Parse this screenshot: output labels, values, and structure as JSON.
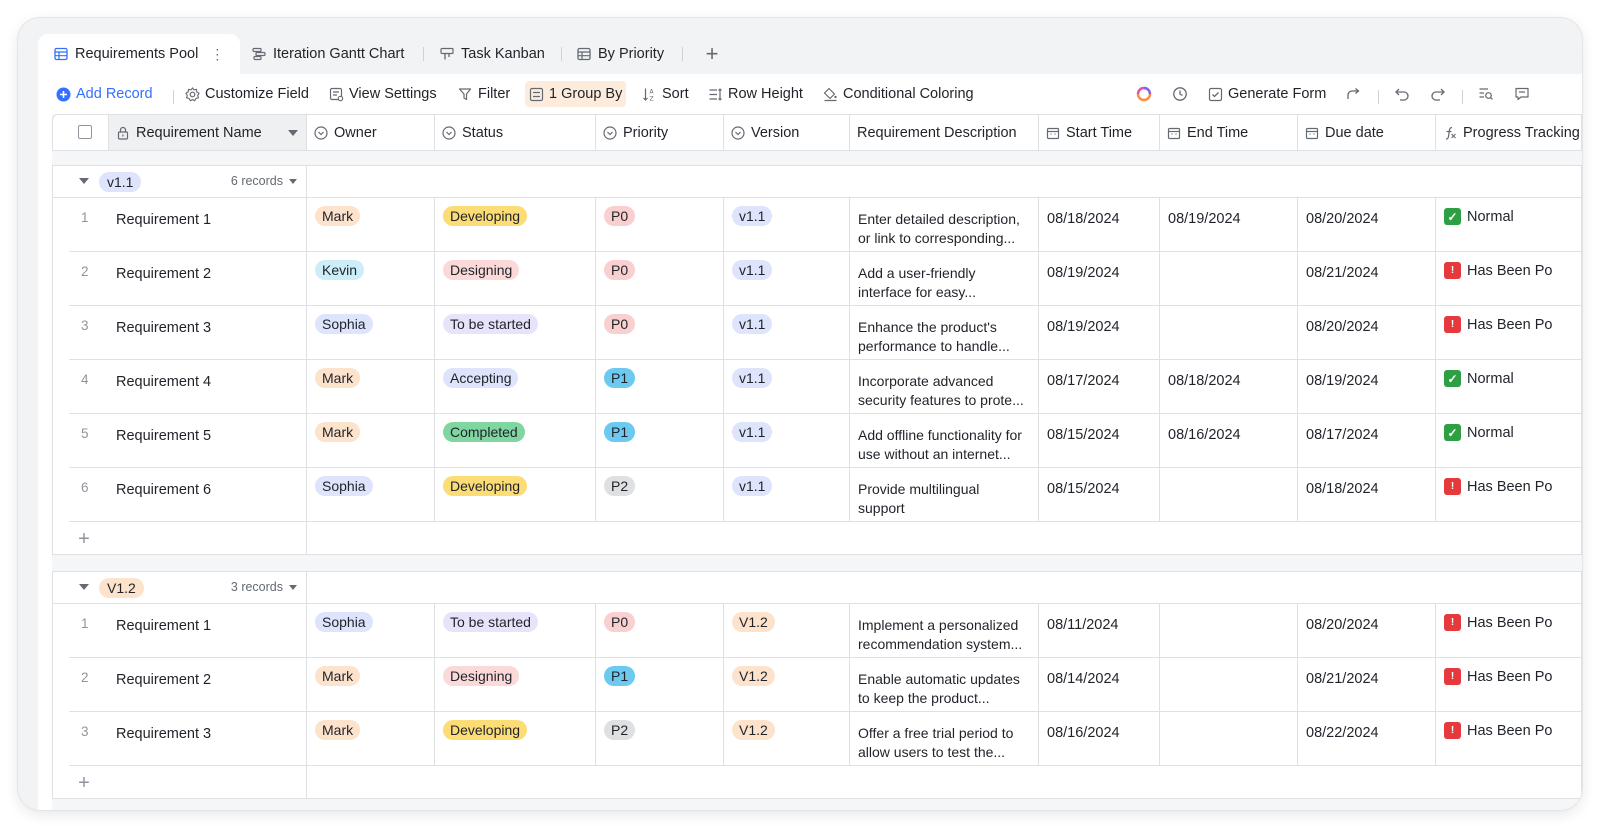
{
  "tabs": [
    {
      "label": "Requirements Pool",
      "icon": "grid-icon",
      "active": true
    },
    {
      "label": "Iteration Gantt Chart",
      "icon": "gantt-icon"
    },
    {
      "label": "Task Kanban",
      "icon": "kanban-icon"
    },
    {
      "label": "By Priority",
      "icon": "grid-icon"
    }
  ],
  "tab_more": "⋮",
  "tab_add": "+",
  "toolbar": {
    "add_record": "Add Record",
    "customize_field": "Customize Field",
    "view_settings": "View Settings",
    "filter": "Filter",
    "group_by": "1 Group By",
    "sort": "Sort",
    "row_height": "Row Height",
    "conditional_coloring": "Conditional Coloring",
    "generate_form": "Generate Form"
  },
  "columns": {
    "name": "Requirement Name",
    "owner": "Owner",
    "status": "Status",
    "priority": "Priority",
    "version": "Version",
    "description": "Requirement Description",
    "start": "Start Time",
    "end": "End Time",
    "due": "Due date",
    "progress": "Progress Tracking"
  },
  "colors": {
    "owner": {
      "Mark": "#fde2cc",
      "Kevin": "#cdeef9",
      "Sophia": "#dde4fb"
    },
    "status": {
      "Developing": "#fbdc75",
      "Designing": "#fbd9d9",
      "To be started": "#e8e3fb",
      "Accepting": "#dde4fb",
      "Completed": "#7fd6a0"
    },
    "priority": {
      "P0": "#f9cfcf",
      "P1": "#6ccaf0",
      "P2": "#dfe0e2"
    },
    "version": {
      "v1.1": "#dde4fb",
      "V1.2": "#fde2cc"
    }
  },
  "groups": [
    {
      "tag": "v1.1",
      "count": "6 records",
      "rows": [
        {
          "num": "1",
          "name": "Requirement 1",
          "owner": "Mark",
          "status": "Developing",
          "priority": "P0",
          "version": "v1.1",
          "desc1": "Enter detailed description,",
          "desc2": "or link to corresponding...",
          "start": "08/18/2024",
          "end": "08/19/2024",
          "due": "08/20/2024",
          "progress": "Normal",
          "progress_icon": "check-icon"
        },
        {
          "num": "2",
          "name": "Requirement 2",
          "owner": "Kevin",
          "status": "Designing",
          "priority": "P0",
          "version": "v1.1",
          "desc1": "Add a user-friendly",
          "desc2": "interface for easy...",
          "start": "08/19/2024",
          "end": "",
          "due": "08/21/2024",
          "progress": "Has Been Po",
          "progress_icon": "alarm-icon"
        },
        {
          "num": "3",
          "name": "Requirement 3",
          "owner": "Sophia",
          "status": "To be started",
          "priority": "P0",
          "version": "v1.1",
          "desc1": "Enhance the product's",
          "desc2": "performance to handle...",
          "start": "08/19/2024",
          "end": "",
          "due": "08/20/2024",
          "progress": "Has Been Po",
          "progress_icon": "alarm-icon"
        },
        {
          "num": "4",
          "name": "Requirement 4",
          "owner": "Mark",
          "status": "Accepting",
          "priority": "P1",
          "version": "v1.1",
          "desc1": "Incorporate advanced",
          "desc2": "security features to prote...",
          "start": "08/17/2024",
          "end": "08/18/2024",
          "due": "08/19/2024",
          "progress": "Normal",
          "progress_icon": "check-icon"
        },
        {
          "num": "5",
          "name": "Requirement 5",
          "owner": "Mark",
          "status": "Completed",
          "priority": "P1",
          "version": "v1.1",
          "desc1": "Add offline functionality for",
          "desc2": "use without an internet...",
          "start": "08/15/2024",
          "end": "08/16/2024",
          "due": "08/17/2024",
          "progress": "Normal",
          "progress_icon": "check-icon"
        },
        {
          "num": "6",
          "name": "Requirement 6",
          "owner": "Sophia",
          "status": "Developing",
          "priority": "P2",
          "version": "v1.1",
          "desc1": "Provide multilingual",
          "desc2": "support",
          "start": "08/15/2024",
          "end": "",
          "due": "08/18/2024",
          "progress": "Has Been Po",
          "progress_icon": "alarm-icon"
        }
      ]
    },
    {
      "tag": "V1.2",
      "count": "3 records",
      "rows": [
        {
          "num": "1",
          "name": "Requirement 1",
          "owner": "Sophia",
          "status": "To be started",
          "priority": "P0",
          "version": "V1.2",
          "desc1": "Implement a personalized",
          "desc2": "recommendation system...",
          "start": "08/11/2024",
          "end": "",
          "due": "08/20/2024",
          "progress": "Has Been Po",
          "progress_icon": "alarm-icon"
        },
        {
          "num": "2",
          "name": "Requirement 2",
          "owner": "Mark",
          "status": "Designing",
          "priority": "P1",
          "version": "V1.2",
          "desc1": "Enable automatic updates",
          "desc2": "to keep the product...",
          "start": "08/14/2024",
          "end": "",
          "due": "08/21/2024",
          "progress": "Has Been Po",
          "progress_icon": "alarm-icon"
        },
        {
          "num": "3",
          "name": "Requirement 3",
          "owner": "Mark",
          "status": "Developing",
          "priority": "P2",
          "version": "V1.2",
          "desc1": "Offer a free trial period to",
          "desc2": "allow users to test the...",
          "start": "08/16/2024",
          "end": "",
          "due": "08/22/2024",
          "progress": "Has Been Po",
          "progress_icon": "alarm-icon"
        }
      ]
    }
  ],
  "add_row": "+"
}
